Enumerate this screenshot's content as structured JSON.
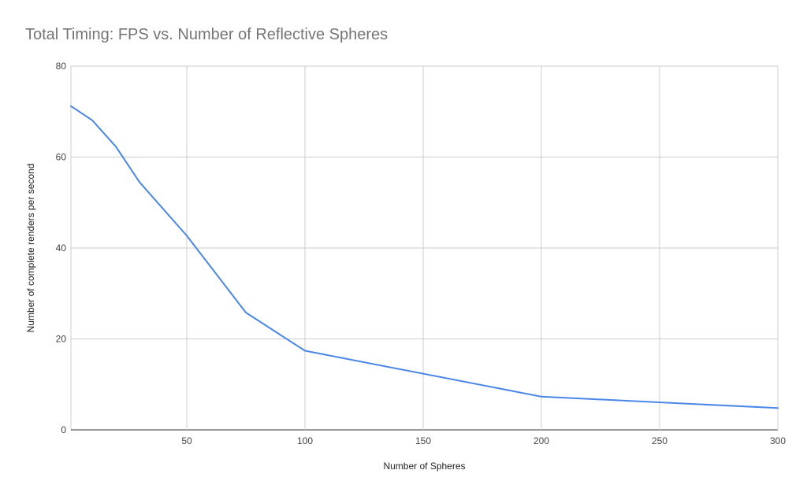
{
  "chart_data": {
    "type": "line",
    "title": "Total Timing: FPS vs. Number of Reflective Spheres",
    "xlabel": "Number of Spheres",
    "ylabel": "Number of complete renders per second",
    "xlim": [
      1,
      300
    ],
    "ylim": [
      0,
      80
    ],
    "x_ticks": [
      50,
      100,
      150,
      200,
      250,
      300
    ],
    "y_ticks": [
      0,
      20,
      40,
      60,
      80
    ],
    "grid": true,
    "legend": "none",
    "series": [
      {
        "color": "#4a86e8",
        "x": [
          1,
          10,
          20,
          30,
          50,
          75,
          100,
          200,
          300
        ],
        "values": [
          71.2,
          68.1,
          62.3,
          54.5,
          42.7,
          25.8,
          17.4,
          7.3,
          4.8
        ]
      }
    ]
  }
}
